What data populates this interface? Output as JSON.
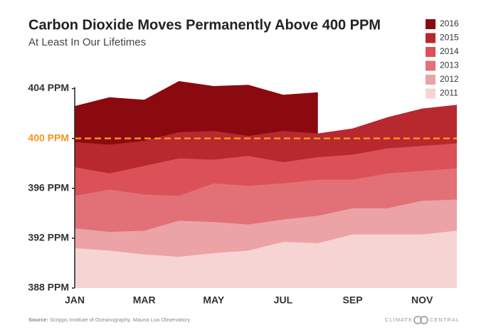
{
  "chart_data": {
    "type": "area",
    "title": "Carbon Dioxide Moves Permanently Above 400 PPM",
    "subtitle": "At Least In Our Lifetimes",
    "categories": [
      "JAN",
      null,
      "MAR",
      null,
      "MAY",
      null,
      "JUL",
      null,
      "SEP",
      null,
      "NOV",
      null
    ],
    "series": [
      {
        "name": "2016",
        "color": "#8b0a0f",
        "values": [
          402.6,
          403.3,
          403.1,
          404.6,
          404.2,
          404.3,
          403.5,
          403.7,
          null,
          null,
          null,
          null
        ]
      },
      {
        "name": "2015",
        "color": "#b8282f",
        "values": [
          399.7,
          399.5,
          399.8,
          400.5,
          400.6,
          400.2,
          400.6,
          400.4,
          400.8,
          401.7,
          402.4,
          402.7
        ]
      },
      {
        "name": "2014",
        "color": "#dc5057",
        "values": [
          397.7,
          397.2,
          397.8,
          398.4,
          398.3,
          398.6,
          398.1,
          398.5,
          398.7,
          399.2,
          399.4,
          399.6
        ]
      },
      {
        "name": "2013",
        "color": "#e27077",
        "values": [
          395.4,
          395.9,
          395.5,
          395.4,
          396.4,
          396.2,
          396.4,
          396.7,
          396.7,
          397.2,
          397.4,
          397.6
        ]
      },
      {
        "name": "2012",
        "color": "#eba3a6",
        "values": [
          392.8,
          392.5,
          392.6,
          393.4,
          393.3,
          393.1,
          393.5,
          393.8,
          394.4,
          394.4,
          395.0,
          395.1
        ]
      },
      {
        "name": "2011",
        "color": "#f6d4d4",
        "values": [
          391.2,
          391.0,
          390.7,
          390.5,
          390.8,
          391.0,
          391.7,
          391.6,
          392.3,
          392.3,
          392.3,
          392.6
        ]
      }
    ],
    "ylim": [
      388,
      405
    ],
    "yticks": [
      {
        "value": 388,
        "label": "388 PPM"
      },
      {
        "value": 392,
        "label": "392 PPM"
      },
      {
        "value": 396,
        "label": "396 PPM"
      },
      {
        "value": 400,
        "label": "400 PPM"
      },
      {
        "value": 404,
        "label": "404 PPM"
      }
    ],
    "reference_line": {
      "value": 400,
      "color": "#f7941d"
    },
    "legend": "top-right",
    "source_label": "Source:",
    "source": "Scripps Institute of Oceanography, Mauna Loa Observatory",
    "logo": [
      "CLIMATE",
      "CENTRAL"
    ]
  }
}
